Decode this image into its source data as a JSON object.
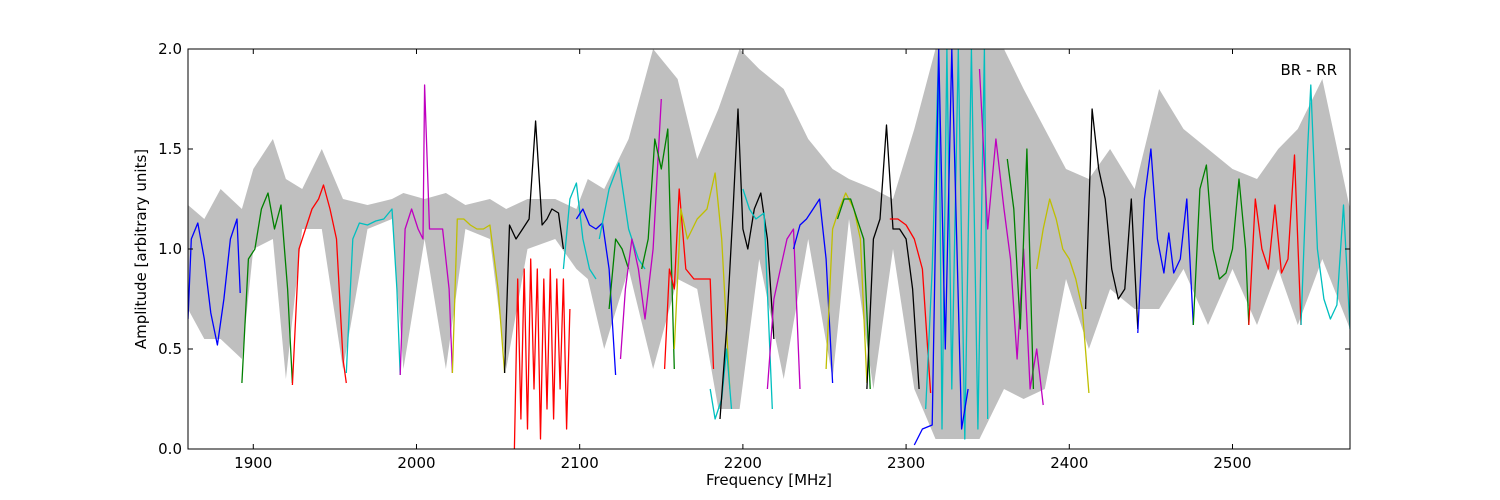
{
  "chart_data": {
    "type": "line",
    "title": "",
    "xlabel": "Frequency [MHz]",
    "ylabel": "Amplitude [arbitrary units]",
    "annotation": "BR - RR",
    "xlim": [
      1860,
      2572
    ],
    "ylim": [
      0.0,
      2.0
    ],
    "xticks": [
      1900,
      2000,
      2100,
      2200,
      2300,
      2400,
      2500
    ],
    "yticks": [
      0.0,
      0.5,
      1.0,
      1.5,
      2.0
    ],
    "xtick_labels": [
      "1900",
      "2000",
      "2100",
      "2200",
      "2300",
      "2400",
      "2500"
    ],
    "ytick_labels": [
      "0.0",
      "0.5",
      "1.0",
      "1.5",
      "2.0"
    ],
    "grid": false,
    "background_band": {
      "color": "#bfbfbf",
      "x": [
        1860,
        1870,
        1880,
        1893,
        1900,
        1912,
        1920,
        1930,
        1942,
        1955,
        1970,
        1985,
        1992,
        2005,
        2018,
        2030,
        2045,
        2055,
        2068,
        2085,
        2098,
        2105,
        2115,
        2130,
        2145,
        2160,
        2172,
        2185,
        2198,
        2210,
        2225,
        2240,
        2255,
        2265,
        2280,
        2292,
        2305,
        2318,
        2330,
        2345,
        2360,
        2372,
        2385,
        2398,
        2412,
        2425,
        2440,
        2455,
        2470,
        2485,
        2500,
        2515,
        2528,
        2540,
        2555,
        2572
      ],
      "upper": [
        1.22,
        1.15,
        1.3,
        1.2,
        1.4,
        1.55,
        1.35,
        1.3,
        1.5,
        1.25,
        1.22,
        1.25,
        1.28,
        1.25,
        1.28,
        1.22,
        1.25,
        1.2,
        1.25,
        1.25,
        1.2,
        1.35,
        1.3,
        1.55,
        2.0,
        1.85,
        1.45,
        1.7,
        2.0,
        1.9,
        1.8,
        1.55,
        1.4,
        1.35,
        1.3,
        1.25,
        1.6,
        2.0,
        2.0,
        2.0,
        2.0,
        1.8,
        1.6,
        1.4,
        1.35,
        1.5,
        1.3,
        1.8,
        1.6,
        1.5,
        1.4,
        1.35,
        1.5,
        1.6,
        1.85,
        1.2
      ],
      "lower": [
        0.7,
        0.55,
        0.55,
        0.45,
        1.0,
        1.05,
        0.35,
        1.1,
        1.1,
        0.4,
        1.1,
        1.15,
        0.4,
        1.05,
        0.4,
        1.1,
        1.05,
        0.4,
        1.0,
        1.05,
        0.9,
        0.85,
        0.5,
        0.9,
        0.4,
        0.85,
        0.8,
        0.2,
        0.2,
        0.95,
        0.35,
        1.05,
        0.35,
        1.15,
        0.3,
        1.0,
        0.3,
        0.05,
        0.05,
        0.05,
        0.3,
        0.25,
        0.3,
        0.85,
        0.5,
        0.8,
        0.7,
        0.7,
        0.9,
        0.62,
        0.9,
        0.62,
        0.9,
        0.62,
        0.95,
        0.6
      ]
    },
    "series": [
      {
        "color": "#0000ff",
        "x": [
          1860,
          1862,
          1866,
          1870,
          1874,
          1878,
          1882,
          1886,
          1890,
          1892
        ],
        "y": [
          0.65,
          1.05,
          1.13,
          0.95,
          0.68,
          0.52,
          0.75,
          1.05,
          1.15,
          0.78
        ]
      },
      {
        "color": "#008000",
        "x": [
          1893,
          1897,
          1901,
          1905,
          1909,
          1913,
          1917,
          1921,
          1924
        ],
        "y": [
          0.33,
          0.95,
          1.0,
          1.2,
          1.28,
          1.1,
          1.22,
          0.8,
          0.33
        ]
      },
      {
        "color": "#ff0000",
        "x": [
          1924,
          1928,
          1932,
          1936,
          1940,
          1943,
          1947,
          1951,
          1955,
          1957
        ],
        "y": [
          0.32,
          1.0,
          1.1,
          1.2,
          1.25,
          1.32,
          1.2,
          1.05,
          0.45,
          0.33
        ]
      },
      {
        "color": "#00bfbf",
        "x": [
          1957,
          1961,
          1965,
          1970,
          1975,
          1980,
          1985,
          1988,
          1990
        ],
        "y": [
          0.38,
          1.05,
          1.13,
          1.12,
          1.14,
          1.15,
          1.2,
          0.8,
          0.37
        ]
      },
      {
        "color": "#bf00bf",
        "x": [
          1990,
          1993,
          1997,
          2001,
          2004,
          2005,
          2008,
          2012,
          2016,
          2020,
          2022
        ],
        "y": [
          0.37,
          1.1,
          1.2,
          1.1,
          1.05,
          1.82,
          1.1,
          1.1,
          1.1,
          0.8,
          0.38
        ]
      },
      {
        "color": "#bfbf00",
        "x": [
          2022,
          2025,
          2029,
          2033,
          2037,
          2041,
          2045,
          2050,
          2054
        ],
        "y": [
          0.38,
          1.15,
          1.15,
          1.12,
          1.1,
          1.1,
          1.12,
          0.8,
          0.38
        ]
      },
      {
        "color": "#000000",
        "x": [
          2054,
          2057,
          2061,
          2065,
          2069,
          2073,
          2077,
          2080,
          2083,
          2087,
          2090
        ],
        "y": [
          0.38,
          1.12,
          1.05,
          1.1,
          1.15,
          1.64,
          1.12,
          1.15,
          1.2,
          1.18,
          1.0
        ]
      },
      {
        "color": "#ff0000",
        "x": [
          2060,
          2062,
          2064,
          2066,
          2068,
          2070,
          2072,
          2074,
          2076,
          2078,
          2080,
          2082,
          2084,
          2086,
          2088,
          2090,
          2092,
          2094
        ],
        "y": [
          0.0,
          0.85,
          0.15,
          0.9,
          0.1,
          0.95,
          0.3,
          0.9,
          0.05,
          0.85,
          0.2,
          0.9,
          0.15,
          0.85,
          0.3,
          0.85,
          0.1,
          0.7
        ]
      },
      {
        "color": "#00bfbf",
        "x": [
          2090,
          2094,
          2098,
          2102,
          2106,
          2110
        ],
        "y": [
          0.9,
          1.25,
          1.33,
          1.05,
          0.9,
          0.85
        ]
      },
      {
        "color": "#0000ff",
        "x": [
          2098,
          2102,
          2106,
          2110,
          2114,
          2118,
          2122
        ],
        "y": [
          1.15,
          1.2,
          1.12,
          1.1,
          1.13,
          0.9,
          0.37
        ]
      },
      {
        "color": "#008000",
        "x": [
          2118,
          2122,
          2126,
          2130
        ],
        "y": [
          0.7,
          1.05,
          1.0,
          0.9
        ]
      },
      {
        "color": "#00bfbf",
        "x": [
          2112,
          2118,
          2124,
          2130,
          2136,
          2140
        ],
        "y": [
          1.05,
          1.3,
          1.43,
          1.1,
          0.95,
          0.9
        ]
      },
      {
        "color": "#bf00bf",
        "x": [
          2125,
          2128,
          2132,
          2136,
          2140,
          2145,
          2150
        ],
        "y": [
          0.45,
          0.8,
          1.05,
          0.9,
          0.65,
          1.0,
          1.75
        ]
      },
      {
        "color": "#008000",
        "x": [
          2138,
          2142,
          2146,
          2150,
          2154,
          2158
        ],
        "y": [
          0.9,
          1.05,
          1.55,
          1.4,
          1.6,
          0.4
        ]
      },
      {
        "color": "#ff0000",
        "x": [
          2152,
          2155,
          2158,
          2161,
          2165,
          2170,
          2176,
          2180,
          2182
        ],
        "y": [
          0.4,
          0.9,
          0.8,
          1.3,
          0.9,
          0.85,
          0.85,
          0.85,
          0.4
        ]
      },
      {
        "color": "#bfbf00",
        "x": [
          2158,
          2162,
          2166,
          2172,
          2178,
          2183,
          2187,
          2192
        ],
        "y": [
          0.5,
          1.2,
          1.05,
          1.15,
          1.2,
          1.38,
          1.05,
          0.3
        ]
      },
      {
        "color": "#00bfbf",
        "x": [
          2180,
          2183,
          2187,
          2190,
          2193
        ],
        "y": [
          0.3,
          0.15,
          0.25,
          0.5,
          0.2
        ]
      },
      {
        "color": "#000000",
        "x": [
          2186,
          2190,
          2194,
          2197,
          2200,
          2203,
          2207,
          2211,
          2215,
          2219
        ],
        "y": [
          0.15,
          0.6,
          1.2,
          1.7,
          1.1,
          1.0,
          1.2,
          1.28,
          1.05,
          0.55
        ]
      },
      {
        "color": "#00bfbf",
        "x": [
          2200,
          2204,
          2208,
          2213,
          2218
        ],
        "y": [
          1.3,
          1.2,
          1.15,
          1.18,
          0.2
        ]
      },
      {
        "color": "#bf00bf",
        "x": [
          2215,
          2219,
          2223,
          2227,
          2231,
          2235
        ],
        "y": [
          0.3,
          0.75,
          0.9,
          1.05,
          1.1,
          0.3
        ]
      },
      {
        "color": "#0000ff",
        "x": [
          2231,
          2235,
          2239,
          2243,
          2247,
          2251,
          2255
        ],
        "y": [
          1.0,
          1.12,
          1.15,
          1.2,
          1.25,
          0.95,
          0.33
        ]
      },
      {
        "color": "#bfbf00",
        "x": [
          2251,
          2255,
          2259,
          2263,
          2268,
          2272,
          2276
        ],
        "y": [
          0.4,
          1.1,
          1.2,
          1.28,
          1.2,
          1.05,
          0.33
        ]
      },
      {
        "color": "#008000",
        "x": [
          2258,
          2262,
          2266,
          2270,
          2274,
          2278
        ],
        "y": [
          1.15,
          1.25,
          1.25,
          1.15,
          1.05,
          0.3
        ]
      },
      {
        "color": "#000000",
        "x": [
          2276,
          2280,
          2284,
          2288,
          2292,
          2296,
          2300,
          2304,
          2308
        ],
        "y": [
          0.3,
          1.05,
          1.15,
          1.62,
          1.1,
          1.1,
          1.05,
          0.8,
          0.3
        ]
      },
      {
        "color": "#ff0000",
        "x": [
          2290,
          2295,
          2300,
          2305,
          2310,
          2315
        ],
        "y": [
          1.15,
          1.15,
          1.12,
          1.05,
          0.9,
          0.28
        ]
      },
      {
        "color": "#00bfbf",
        "x": [
          2312,
          2316,
          2320,
          2322,
          2325,
          2328,
          2332,
          2336,
          2340,
          2344,
          2348,
          2350
        ],
        "y": [
          0.2,
          0.9,
          2.0,
          0.1,
          2.0,
          0.3,
          2.0,
          0.05,
          2.0,
          0.1,
          2.0,
          0.15
        ]
      },
      {
        "color": "#0000ff",
        "x": [
          2305,
          2310,
          2316,
          2320,
          2324,
          2328,
          2334,
          2338
        ],
        "y": [
          0.02,
          0.1,
          0.12,
          2.0,
          0.5,
          2.0,
          0.1,
          0.3
        ]
      },
      {
        "color": "#bf00bf",
        "x": [
          2345,
          2350,
          2355,
          2360,
          2364,
          2368,
          2372,
          2376,
          2380,
          2384
        ],
        "y": [
          1.9,
          1.1,
          1.55,
          1.2,
          0.95,
          0.45,
          1.0,
          0.3,
          0.5,
          0.22
        ]
      },
      {
        "color": "#008000",
        "x": [
          2362,
          2366,
          2370,
          2374,
          2378
        ],
        "y": [
          1.45,
          1.2,
          0.6,
          1.5,
          0.3
        ]
      },
      {
        "color": "#bfbf00",
        "x": [
          2380,
          2384,
          2388,
          2392,
          2396,
          2400,
          2404,
          2408,
          2412
        ],
        "y": [
          0.9,
          1.1,
          1.25,
          1.15,
          1.0,
          0.95,
          0.85,
          0.7,
          0.28
        ]
      },
      {
        "color": "#000000",
        "x": [
          2410,
          2414,
          2418,
          2422,
          2426,
          2430,
          2434,
          2438,
          2442
        ],
        "y": [
          0.7,
          1.7,
          1.4,
          1.25,
          0.9,
          0.75,
          0.8,
          1.25,
          0.6
        ]
      },
      {
        "color": "#0000ff",
        "x": [
          2442,
          2446,
          2450,
          2454,
          2458,
          2461,
          2464,
          2468,
          2472,
          2476
        ],
        "y": [
          0.58,
          1.25,
          1.5,
          1.05,
          0.88,
          1.08,
          0.88,
          0.95,
          1.25,
          0.62
        ]
      },
      {
        "color": "#008000",
        "x": [
          2476,
          2480,
          2484,
          2488,
          2492,
          2496,
          2500,
          2504,
          2508,
          2510
        ],
        "y": [
          0.62,
          1.3,
          1.42,
          1.0,
          0.85,
          0.88,
          1.0,
          1.35,
          1.0,
          0.62
        ]
      },
      {
        "color": "#ff0000",
        "x": [
          2510,
          2514,
          2518,
          2522,
          2526,
          2530,
          2534,
          2538,
          2542
        ],
        "y": [
          0.62,
          1.25,
          1.0,
          0.9,
          1.22,
          0.88,
          0.95,
          1.47,
          0.62
        ]
      },
      {
        "color": "#00bfbf",
        "x": [
          2542,
          2546,
          2548,
          2552,
          2556,
          2560,
          2564,
          2568,
          2572
        ],
        "y": [
          0.62,
          1.5,
          1.82,
          1.0,
          0.75,
          0.65,
          0.72,
          1.22,
          0.6
        ]
      }
    ]
  }
}
